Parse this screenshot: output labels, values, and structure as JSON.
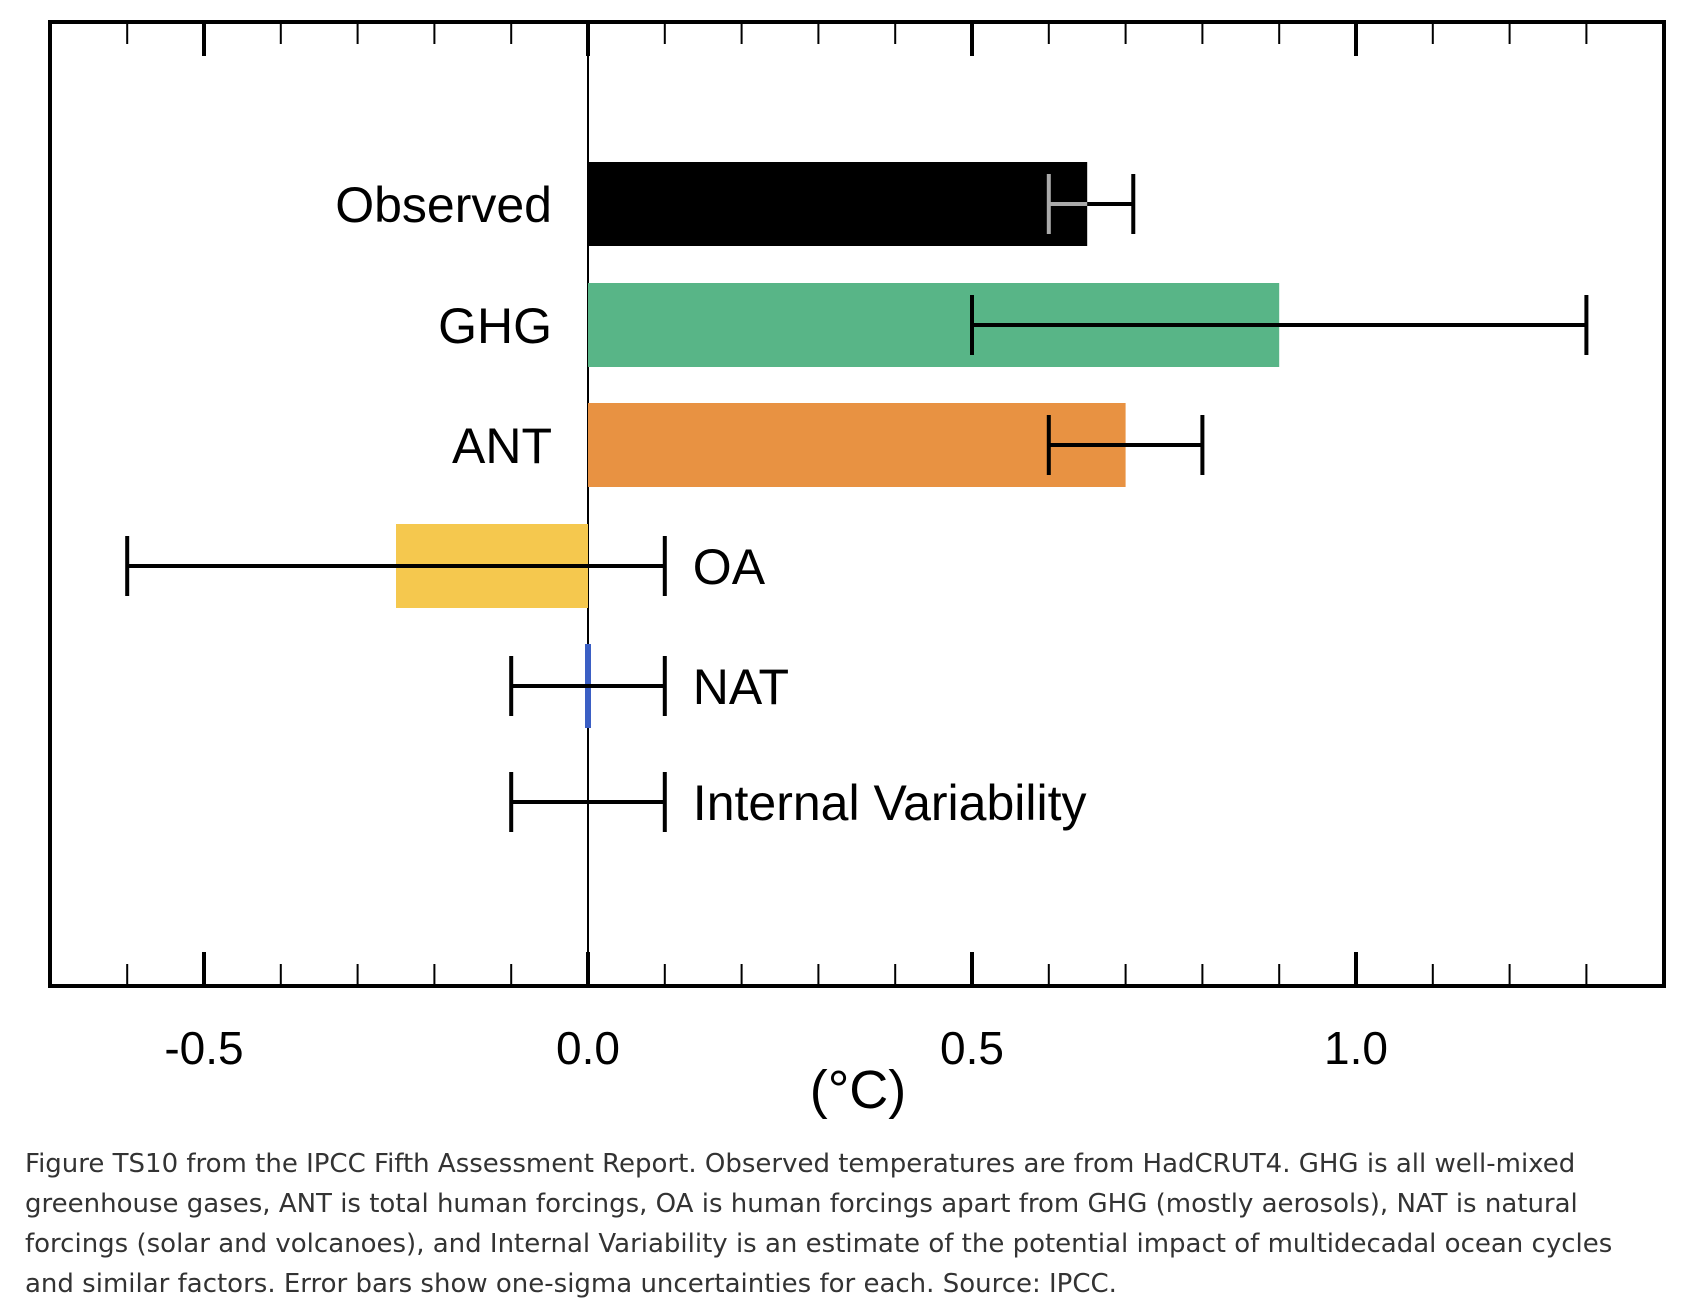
{
  "chart_data": {
    "type": "bar",
    "orientation": "horizontal",
    "categories": [
      "Observed",
      "GHG",
      "ANT",
      "OA",
      "NAT",
      "Internal Variability"
    ],
    "values": [
      0.65,
      0.9,
      0.7,
      -0.25,
      0.0,
      null
    ],
    "error_bars": [
      {
        "low": 0.6,
        "high": 0.71
      },
      {
        "low": 0.5,
        "high": 1.3
      },
      {
        "low": 0.6,
        "high": 0.8
      },
      {
        "low": -0.6,
        "high": 0.1
      },
      {
        "low": -0.1,
        "high": 0.1
      },
      {
        "low": -0.1,
        "high": 0.1
      }
    ],
    "colors": [
      "#000000",
      "#58b587",
      "#e89242",
      "#f5c84e",
      "#3b5fc4",
      null
    ],
    "label_side": [
      "left",
      "left",
      "left",
      "right",
      "right",
      "right"
    ],
    "xlim": [
      -0.7,
      1.4
    ],
    "x_major_ticks": [
      -0.5,
      0.0,
      0.5,
      1.0
    ],
    "x_tick_labels": [
      "-0.5",
      "0.0",
      "0.5",
      "1.0"
    ],
    "x_minor_step": 0.1,
    "xlabel": "(°C)",
    "title": "",
    "grid": false
  },
  "caption": "Figure TS10 from the IPCC Fifth Assessment Report. Observed temperatures are from HadCRUT4. GHG is all well-mixed greenhouse gases, ANT is total human forcings, OA is human forcings apart from GHG (mostly aerosols), NAT is natural forcings (solar and volcanoes), and Internal Variability is an estimate of the potential impact of multidecadal ocean cycles and similar factors. Error bars show one-sigma uncertainties for each. Source: IPCC."
}
